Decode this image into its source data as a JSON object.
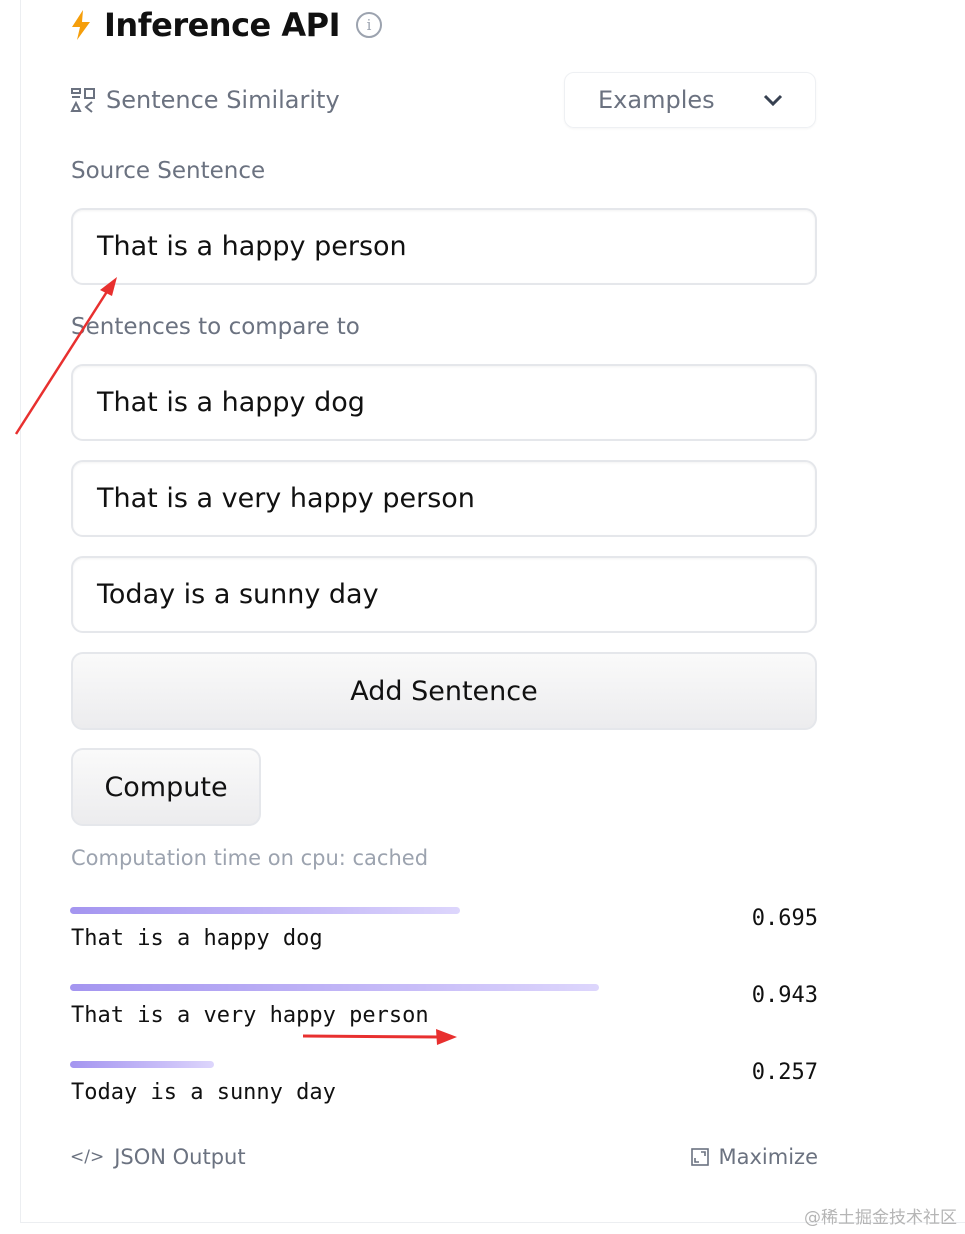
{
  "header": {
    "title": "Inference API",
    "icon": "lightning-icon",
    "accent": "#f59e0b"
  },
  "task": {
    "label": "Sentence Similarity",
    "icon": "sentence-similarity-icon"
  },
  "examples": {
    "label": "Examples"
  },
  "source": {
    "label": "Source Sentence",
    "value": "That is a happy person"
  },
  "compare": {
    "label": "Sentences to compare to",
    "values": [
      "That is a happy dog",
      "That is a very happy person",
      "Today is a sunny day"
    ]
  },
  "buttons": {
    "add": "Add Sentence",
    "compute": "Compute"
  },
  "status": "Computation time on cpu: cached",
  "results": [
    {
      "text": "That is a happy dog",
      "score": "0.695",
      "value": 0.695
    },
    {
      "text": "That is a very happy person",
      "score": "0.943",
      "value": 0.943
    },
    {
      "text": "Today is a sunny day",
      "score": "0.257",
      "value": 0.257
    }
  ],
  "footer": {
    "json": "JSON Output",
    "maximize": "Maximize"
  },
  "watermark": "@稀土掘金技术社区",
  "annotation_color": "#e8302f"
}
